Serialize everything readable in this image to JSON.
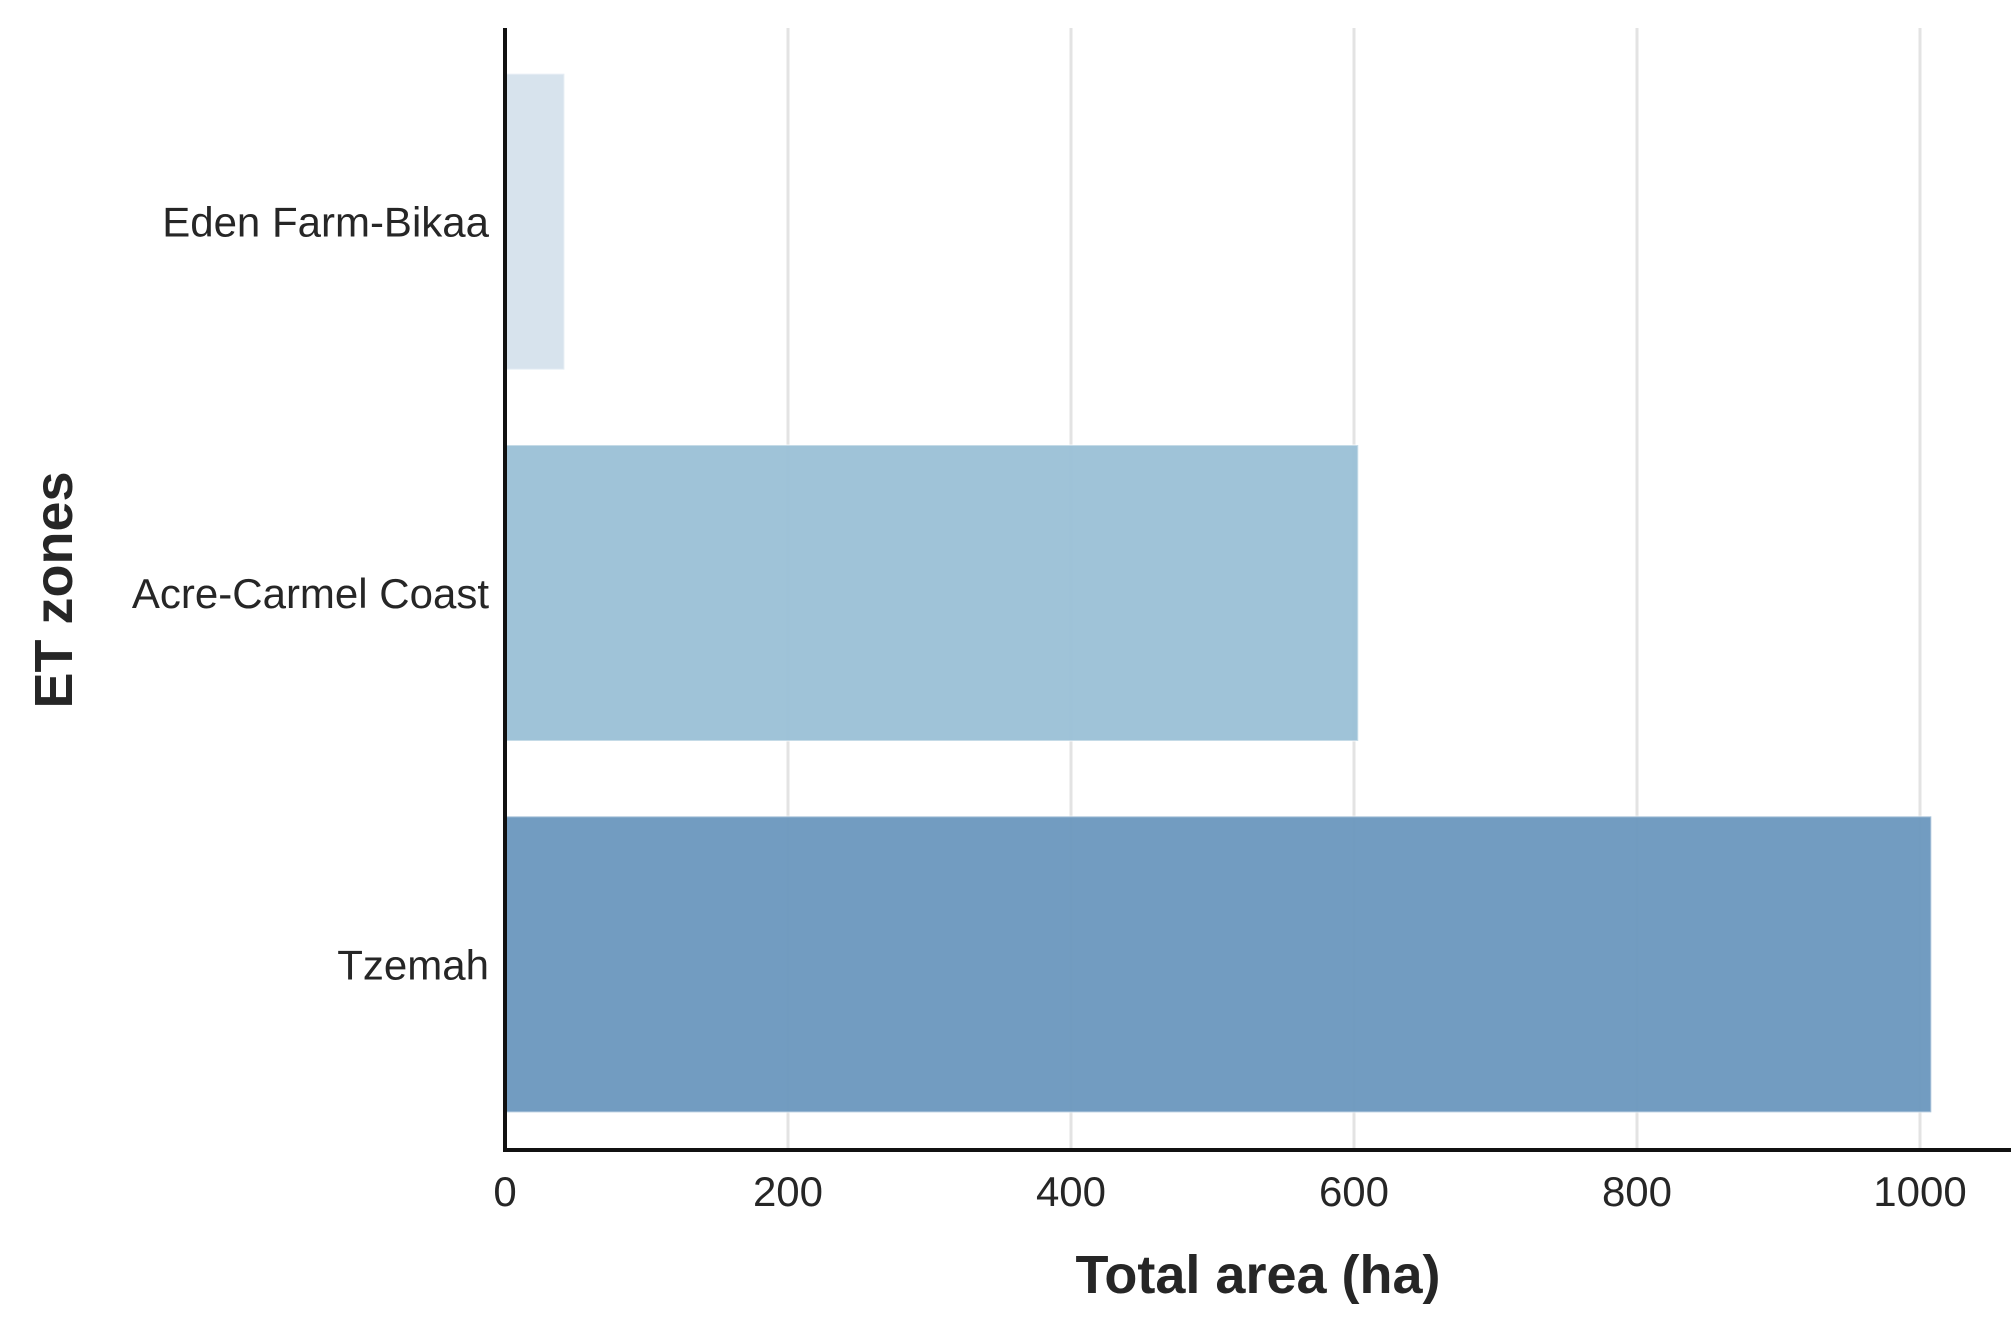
{
  "chart_data": {
    "type": "bar",
    "orientation": "horizontal",
    "categories": [
      "Eden Farm-Bikaa",
      "Acre-Carmel Coast",
      "Tzemah"
    ],
    "values": [
      42,
      603,
      1008
    ],
    "colors": [
      "#d5e1ec",
      "#9ac0d6",
      "#6a97be"
    ],
    "xlabel": "Total area (ha)",
    "ylabel": "ET zones",
    "xlim": [
      0,
      1060
    ],
    "xticks": [
      0,
      200,
      400,
      600,
      800,
      1000
    ],
    "xtick_labels": [
      "0",
      "200",
      "400",
      "600",
      "800",
      "1000"
    ],
    "grid": "vertical",
    "grid_color": "#e3e3e3",
    "axis_color": "#111111"
  }
}
